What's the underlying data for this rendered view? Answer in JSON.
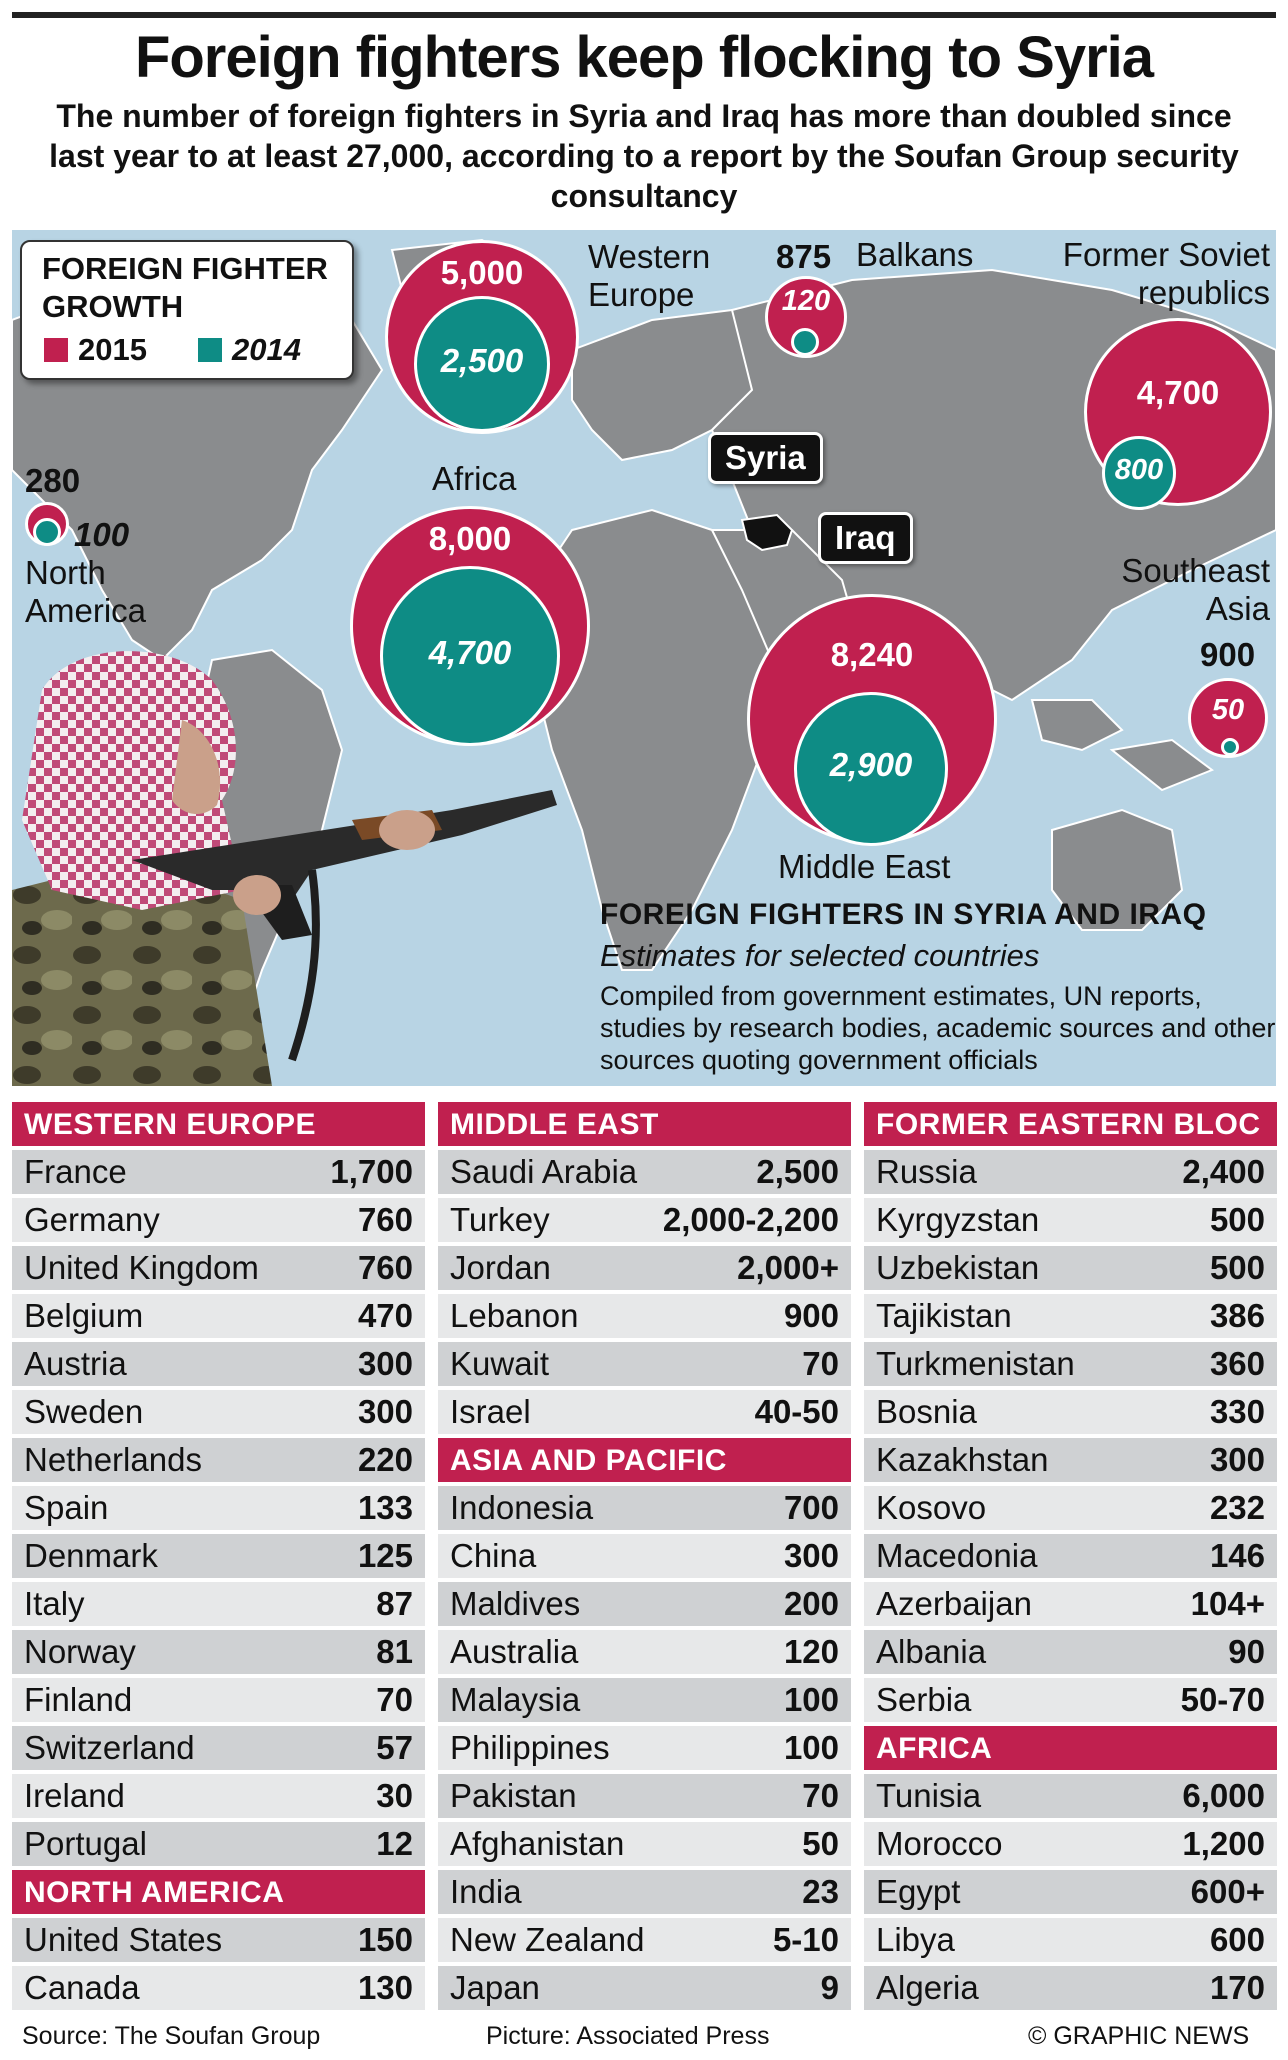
{
  "title": "Foreign fighters keep flocking to Syria",
  "subtitle": "The number of foreign fighters in Syria and Iraq has more than doubled since last year to at least 27,000, according to a report by the Soufan Group security consultancy",
  "legend": {
    "title_line1": "FOREIGN FIGHTER",
    "title_line2": "GROWTH",
    "label_2015": "2015",
    "label_2014": "2014",
    "color_2015": "#c0204f",
    "color_2014": "#0e8c85"
  },
  "regions": {
    "western_europe": {
      "label_line1": "Western",
      "label_line2": "Europe",
      "v2015": "5,000",
      "v2014": "2,500"
    },
    "balkans": {
      "label": "Balkans",
      "v2015": "875",
      "v2014": "120"
    },
    "former_soviet": {
      "label_line1": "Former Soviet",
      "label_line2": "republics",
      "v2015": "4,700",
      "v2014": "800"
    },
    "north_america": {
      "label_line1": "North",
      "label_line2": "America",
      "v2015": "280",
      "v2014": "100"
    },
    "africa": {
      "label": "Africa",
      "v2015": "8,000",
      "v2014": "4,700"
    },
    "middle_east": {
      "label": "Middle East",
      "v2015": "8,240",
      "v2014": "2,900"
    },
    "southeast_asia": {
      "label_line1": "Southeast",
      "label_line2": "Asia",
      "v2015": "900",
      "v2014": "50"
    }
  },
  "tags": {
    "syria": "Syria",
    "iraq": "Iraq"
  },
  "info": {
    "heading": "FOREIGN FIGHTERS IN SYRIA AND IRAQ",
    "subheading": "Estimates for selected countries",
    "description": "Compiled from government estimates, UN reports, studies by research bodies, academic sources and other sources quoting government officials"
  },
  "tables": {
    "western_europe": {
      "header": "WESTERN EUROPE",
      "rows": [
        {
          "country": "France",
          "value": "1,700"
        },
        {
          "country": "Germany",
          "value": "760"
        },
        {
          "country": "United Kingdom",
          "value": "760"
        },
        {
          "country": "Belgium",
          "value": "470"
        },
        {
          "country": "Austria",
          "value": "300"
        },
        {
          "country": "Sweden",
          "value": "300"
        },
        {
          "country": "Netherlands",
          "value": "220"
        },
        {
          "country": "Spain",
          "value": "133"
        },
        {
          "country": "Denmark",
          "value": "125"
        },
        {
          "country": "Italy",
          "value": "87"
        },
        {
          "country": "Norway",
          "value": "81"
        },
        {
          "country": "Finland",
          "value": "70"
        },
        {
          "country": "Switzerland",
          "value": "57"
        },
        {
          "country": "Ireland",
          "value": "30"
        },
        {
          "country": "Portugal",
          "value": "12"
        }
      ]
    },
    "north_america": {
      "header": "NORTH AMERICA",
      "rows": [
        {
          "country": "United States",
          "value": "150"
        },
        {
          "country": "Canada",
          "value": "130"
        }
      ]
    },
    "middle_east": {
      "header": "MIDDLE EAST",
      "rows": [
        {
          "country": "Saudi Arabia",
          "value": "2,500"
        },
        {
          "country": "Turkey",
          "value": "2,000-2,200"
        },
        {
          "country": "Jordan",
          "value": "2,000+"
        },
        {
          "country": "Lebanon",
          "value": "900"
        },
        {
          "country": "Kuwait",
          "value": "70"
        },
        {
          "country": "Israel",
          "value": "40-50"
        }
      ]
    },
    "asia_pacific": {
      "header": "ASIA AND PACIFIC",
      "rows": [
        {
          "country": "Indonesia",
          "value": "700"
        },
        {
          "country": "China",
          "value": "300"
        },
        {
          "country": "Maldives",
          "value": "200"
        },
        {
          "country": "Australia",
          "value": "120"
        },
        {
          "country": "Malaysia",
          "value": "100"
        },
        {
          "country": "Philippines",
          "value": "100"
        },
        {
          "country": "Pakistan",
          "value": "70"
        },
        {
          "country": "Afghanistan",
          "value": "50"
        },
        {
          "country": "India",
          "value": "23"
        },
        {
          "country": "New Zealand",
          "value": "5-10"
        },
        {
          "country": "Japan",
          "value": "9"
        }
      ]
    },
    "former_eastern_bloc": {
      "header": "FORMER EASTERN BLOC",
      "rows": [
        {
          "country": "Russia",
          "value": "2,400"
        },
        {
          "country": "Kyrgyzstan",
          "value": "500"
        },
        {
          "country": "Uzbekistan",
          "value": "500"
        },
        {
          "country": "Tajikistan",
          "value": "386"
        },
        {
          "country": "Turkmenistan",
          "value": "360"
        },
        {
          "country": "Bosnia",
          "value": "330"
        },
        {
          "country": "Kazakhstan",
          "value": "300"
        },
        {
          "country": "Kosovo",
          "value": "232"
        },
        {
          "country": "Macedonia",
          "value": "146"
        },
        {
          "country": "Azerbaijan",
          "value": "104+"
        },
        {
          "country": "Albania",
          "value": "90"
        },
        {
          "country": "Serbia",
          "value": "50-70"
        }
      ]
    },
    "africa": {
      "header": "AFRICA",
      "rows": [
        {
          "country": "Tunisia",
          "value": "6,000"
        },
        {
          "country": "Morocco",
          "value": "1,200"
        },
        {
          "country": "Egypt",
          "value": "600+"
        },
        {
          "country": "Libya",
          "value": "600"
        },
        {
          "country": "Algeria",
          "value": "170"
        }
      ]
    }
  },
  "footer": {
    "source": "Source: The Soufan Group",
    "picture": "Picture: Associated Press",
    "credit": "© GRAPHIC NEWS"
  }
}
